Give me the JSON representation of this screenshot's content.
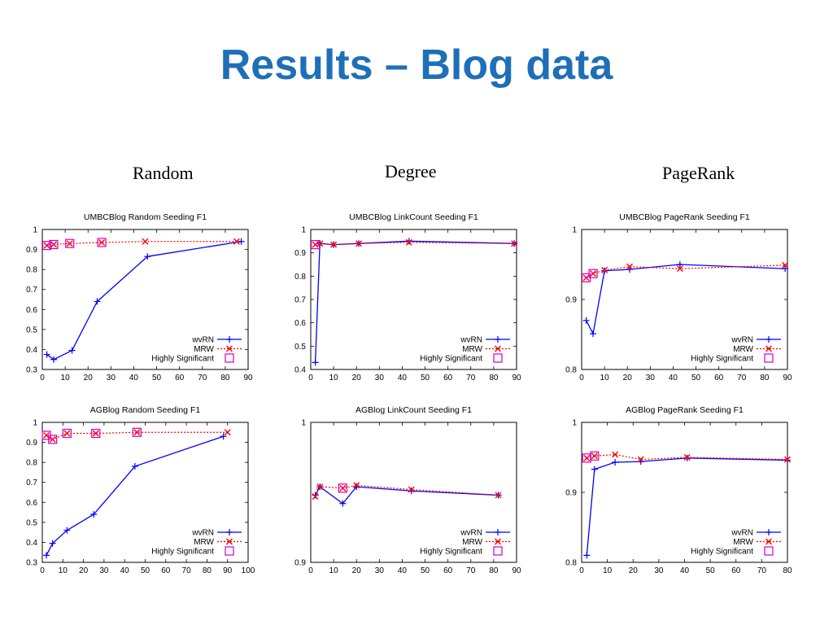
{
  "title": "Results – Blog data",
  "columns": [
    "Random",
    "Degree",
    "PageRank"
  ],
  "colors": {
    "title": "#1F6FB8",
    "wvRN": "#0000FF",
    "MRW": "#FF0000",
    "significant": "#CC00CC"
  },
  "chart_data": [
    {
      "type": "line",
      "title": "UMBCBlog Random Seeding F1",
      "xlabel": "",
      "ylabel": "",
      "xlim": [
        0,
        90
      ],
      "ylim": [
        0.3,
        1
      ],
      "xticks": [
        0,
        10,
        20,
        30,
        40,
        50,
        60,
        70,
        80,
        90
      ],
      "yticks": [
        0.3,
        0.4,
        0.5,
        0.6,
        0.7,
        0.8,
        0.9,
        1
      ],
      "legend_position": "bottom-right",
      "series": [
        {
          "name": "wvRN",
          "style": "solid",
          "marker": "plus",
          "x": [
            2,
            5,
            13,
            24,
            46,
            87
          ],
          "y": [
            0.375,
            0.35,
            0.395,
            0.64,
            0.865,
            0.94
          ]
        },
        {
          "name": "MRW",
          "style": "dotted",
          "marker": "cross",
          "x": [
            2,
            5,
            12,
            26,
            45,
            85
          ],
          "y": [
            0.92,
            0.925,
            0.93,
            0.935,
            0.94,
            0.94
          ]
        },
        {
          "name": "Highly Significant",
          "style": "points",
          "marker": "square",
          "x": [
            2,
            5,
            12,
            26
          ],
          "y": [
            0.92,
            0.925,
            0.93,
            0.935
          ]
        }
      ]
    },
    {
      "type": "line",
      "title": "UMBCBlog LinkCount Seeding F1",
      "xlabel": "",
      "ylabel": "",
      "xlim": [
        0,
        90
      ],
      "ylim": [
        0.4,
        1
      ],
      "xticks": [
        0,
        10,
        20,
        30,
        40,
        50,
        60,
        70,
        80,
        90
      ],
      "yticks": [
        0.4,
        0.5,
        0.6,
        0.7,
        0.8,
        0.9,
        1
      ],
      "legend_position": "bottom-right",
      "series": [
        {
          "name": "wvRN",
          "style": "solid",
          "marker": "plus",
          "x": [
            2,
            4,
            10,
            21,
            43,
            89
          ],
          "y": [
            0.43,
            0.94,
            0.935,
            0.94,
            0.95,
            0.94
          ]
        },
        {
          "name": "MRW",
          "style": "dotted",
          "marker": "cross",
          "x": [
            2,
            4,
            10,
            21,
            43,
            89
          ],
          "y": [
            0.935,
            0.94,
            0.935,
            0.94,
            0.945,
            0.94
          ]
        },
        {
          "name": "Highly Significant",
          "style": "points",
          "marker": "square",
          "x": [
            2
          ],
          "y": [
            0.935
          ]
        }
      ]
    },
    {
      "type": "line",
      "title": "UMBCBlog PageRank Seeding F1",
      "xlabel": "",
      "ylabel": "",
      "xlim": [
        0,
        90
      ],
      "ylim": [
        0.8,
        1
      ],
      "xticks": [
        0,
        10,
        20,
        30,
        40,
        50,
        60,
        70,
        80,
        90
      ],
      "yticks": [
        0.8,
        0.9,
        1
      ],
      "legend_position": "bottom-right",
      "series": [
        {
          "name": "wvRN",
          "style": "solid",
          "marker": "plus",
          "x": [
            2,
            5,
            10,
            21,
            43,
            89
          ],
          "y": [
            0.87,
            0.851,
            0.941,
            0.943,
            0.95,
            0.944
          ]
        },
        {
          "name": "MRW",
          "style": "dotted",
          "marker": "cross",
          "x": [
            2,
            5,
            10,
            21,
            43,
            89
          ],
          "y": [
            0.931,
            0.937,
            0.942,
            0.947,
            0.944,
            0.949
          ]
        },
        {
          "name": "Highly Significant",
          "style": "points",
          "marker": "square",
          "x": [
            2,
            5
          ],
          "y": [
            0.931,
            0.937
          ]
        }
      ]
    },
    {
      "type": "line",
      "title": "AGBlog Random Seeding F1",
      "xlabel": "",
      "ylabel": "",
      "xlim": [
        0,
        100
      ],
      "ylim": [
        0.3,
        1
      ],
      "xticks": [
        0,
        10,
        20,
        30,
        40,
        50,
        60,
        70,
        80,
        90,
        100
      ],
      "yticks": [
        0.3,
        0.4,
        0.5,
        0.6,
        0.7,
        0.8,
        0.9,
        1
      ],
      "legend_position": "bottom-right",
      "series": [
        {
          "name": "wvRN",
          "style": "solid",
          "marker": "plus",
          "x": [
            2,
            5,
            12,
            25,
            45,
            88
          ],
          "y": [
            0.335,
            0.395,
            0.46,
            0.54,
            0.78,
            0.93
          ]
        },
        {
          "name": "MRW",
          "style": "dotted",
          "marker": "cross",
          "x": [
            2,
            5,
            12,
            26,
            46,
            90
          ],
          "y": [
            0.935,
            0.915,
            0.945,
            0.945,
            0.95,
            0.95
          ]
        },
        {
          "name": "Highly Significant",
          "style": "points",
          "marker": "square",
          "x": [
            2,
            5,
            12,
            26,
            46
          ],
          "y": [
            0.935,
            0.915,
            0.945,
            0.945,
            0.95
          ]
        }
      ]
    },
    {
      "type": "line",
      "title": "AGBlog LinkCount Seeding F1",
      "xlabel": "",
      "ylabel": "",
      "xlim": [
        0,
        90
      ],
      "ylim": [
        0.9,
        1
      ],
      "xticks": [
        0,
        10,
        20,
        30,
        40,
        50,
        60,
        70,
        80,
        90
      ],
      "yticks": [
        0.9,
        1
      ],
      "legend_position": "bottom-right",
      "series": [
        {
          "name": "wvRN",
          "style": "solid",
          "marker": "plus",
          "x": [
            2,
            4,
            14,
            20,
            44,
            82
          ],
          "y": [
            0.948,
            0.954,
            0.942,
            0.954,
            0.951,
            0.948
          ]
        },
        {
          "name": "MRW",
          "style": "dotted",
          "marker": "cross",
          "x": [
            2,
            4,
            14,
            20,
            44,
            82
          ],
          "y": [
            0.947,
            0.954,
            0.953,
            0.955,
            0.952,
            0.948
          ]
        },
        {
          "name": "Highly Significant",
          "style": "points",
          "marker": "square",
          "x": [
            14
          ],
          "y": [
            0.953
          ]
        }
      ]
    },
    {
      "type": "line",
      "title": "AGBlog PageRank Seeding F1",
      "xlabel": "",
      "ylabel": "",
      "xlim": [
        0,
        80
      ],
      "ylim": [
        0.8,
        1
      ],
      "xticks": [
        0,
        10,
        20,
        30,
        40,
        50,
        60,
        70,
        80
      ],
      "yticks": [
        0.8,
        0.9,
        1
      ],
      "legend_position": "bottom-right",
      "series": [
        {
          "name": "wvRN",
          "style": "solid",
          "marker": "plus",
          "x": [
            2,
            5,
            13,
            23,
            41,
            80
          ],
          "y": [
            0.81,
            0.933,
            0.943,
            0.944,
            0.949,
            0.946
          ]
        },
        {
          "name": "MRW",
          "style": "dotted",
          "marker": "cross",
          "x": [
            2,
            5,
            13,
            23,
            41,
            80
          ],
          "y": [
            0.949,
            0.952,
            0.954,
            0.947,
            0.95,
            0.947
          ]
        },
        {
          "name": "Highly Significant",
          "style": "points",
          "marker": "square",
          "x": [
            2,
            5
          ],
          "y": [
            0.949,
            0.952
          ]
        }
      ]
    }
  ]
}
